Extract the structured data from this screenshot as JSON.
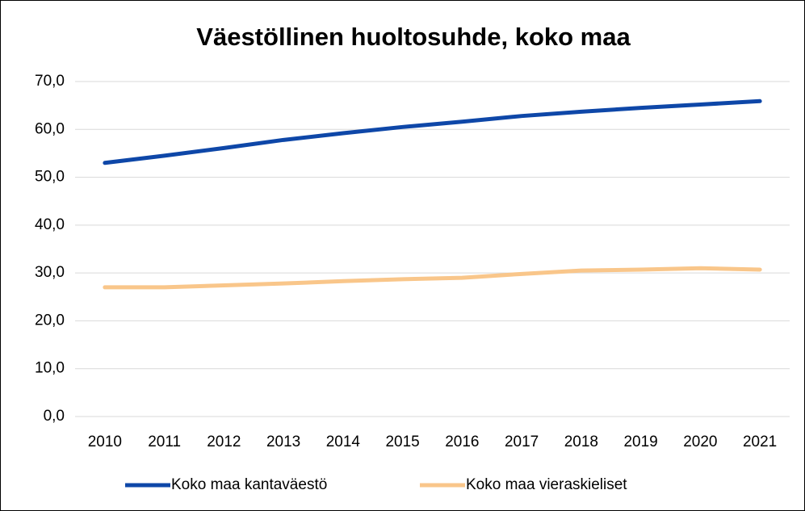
{
  "chart_data": {
    "type": "line",
    "title": "Väestöllinen huoltosuhde, koko maa",
    "categories": [
      "2010",
      "2011",
      "2012",
      "2013",
      "2014",
      "2015",
      "2016",
      "2017",
      "2018",
      "2019",
      "2020",
      "2021"
    ],
    "series": [
      {
        "name": "Koko maa kantaväestö",
        "color": "#0e47a8",
        "values": [
          53.0,
          54.5,
          56.1,
          57.8,
          59.2,
          60.5,
          61.6,
          62.8,
          63.7,
          64.5,
          65.2,
          65.9
        ]
      },
      {
        "name": "Koko maa vieraskieliset",
        "color": "#f9c68a",
        "values": [
          27.0,
          27.0,
          27.4,
          27.8,
          28.3,
          28.7,
          29.0,
          29.8,
          30.5,
          30.7,
          31.0,
          30.7
        ]
      }
    ],
    "ylim": [
      0,
      70
    ],
    "yticks": [
      {
        "value": 0,
        "label": "0,0"
      },
      {
        "value": 10,
        "label": "10,0"
      },
      {
        "value": 20,
        "label": "20,0"
      },
      {
        "value": 30,
        "label": "30,0"
      },
      {
        "value": 40,
        "label": "40,0"
      },
      {
        "value": 50,
        "label": "50,0"
      },
      {
        "value": 60,
        "label": "60,0"
      },
      {
        "value": 70,
        "label": "70,0"
      }
    ],
    "grid": true,
    "legend": "bottom"
  }
}
